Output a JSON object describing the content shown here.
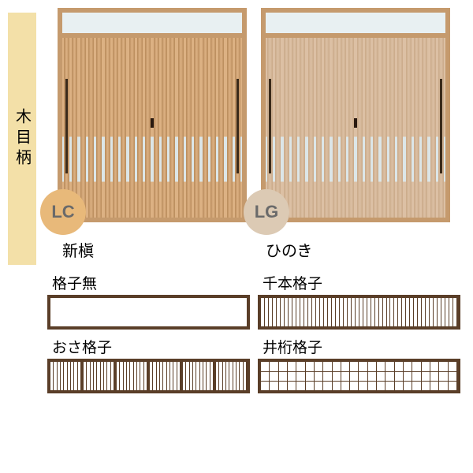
{
  "side_label": "木目柄",
  "doors": [
    {
      "code": "LC",
      "name": "新槇",
      "wood_light": "#dcb183",
      "wood_dark": "#b88a5a",
      "badge_bg": "#e8b97a",
      "slat_count": 22
    },
    {
      "code": "LG",
      "name": "ひのき",
      "wood_light": "#dcc0a4",
      "wood_dark": "#c9a988",
      "badge_bg": "#dccab4",
      "slat_count": 22
    }
  ],
  "lattices": [
    {
      "label": "格子無",
      "type": "blank"
    },
    {
      "label": "千本格子",
      "type": "vslats",
      "count": 50
    },
    {
      "label": "おさ格子",
      "type": "osa",
      "segments": 6,
      "per_seg": 9
    },
    {
      "label": "井桁格子",
      "type": "grid",
      "cols": 22,
      "rows": 3
    }
  ],
  "colors": {
    "frame": "#5a3e28",
    "door_frame": "#c59a6d",
    "transom_glass": "#e8f0f2"
  }
}
